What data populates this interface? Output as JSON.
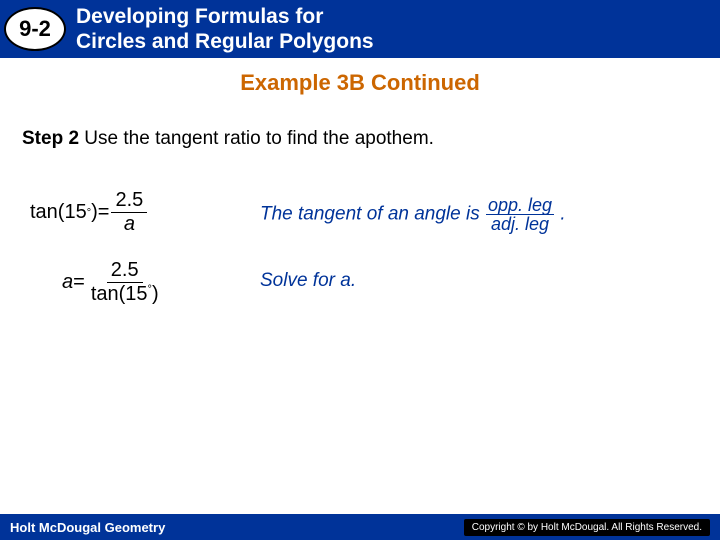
{
  "header": {
    "badge": "9-2",
    "title_line1": "Developing Formulas for",
    "title_line2": "Circles and Regular Polygons"
  },
  "example_title": "Example 3B Continued",
  "step": {
    "label": "Step 2",
    "text": " Use the tangent ratio to find the apothem."
  },
  "equations": {
    "eq1_lhs_fn": "tan(15",
    "eq1_lhs_deg": "°",
    "eq1_lhs_close": ")",
    "eq1_eq": " = ",
    "eq1_num": "2.5",
    "eq1_den": "a",
    "eq2_lhs": "a",
    "eq2_eq": " = ",
    "eq2_num": "2.5",
    "eq2_den_fn": "tan(15",
    "eq2_den_deg": "°",
    "eq2_den_close": ")"
  },
  "explain": {
    "line1_pre": "The tangent of an angle is ",
    "line1_frac_top": "opp. leg",
    "line1_frac_bot": "adj. leg",
    "line1_post": " .",
    "line2": "Solve for a."
  },
  "footer": {
    "left": "Holt McDougal Geometry",
    "right": "Copyright © by Holt McDougal. All Rights Reserved."
  },
  "colors": {
    "brand_blue": "#003399",
    "accent_orange": "#cc6600",
    "white": "#ffffff",
    "black": "#000000"
  },
  "typography": {
    "title_fontsize": 21,
    "example_fontsize": 22,
    "body_fontsize": 19,
    "footer_fontsize": 13
  }
}
